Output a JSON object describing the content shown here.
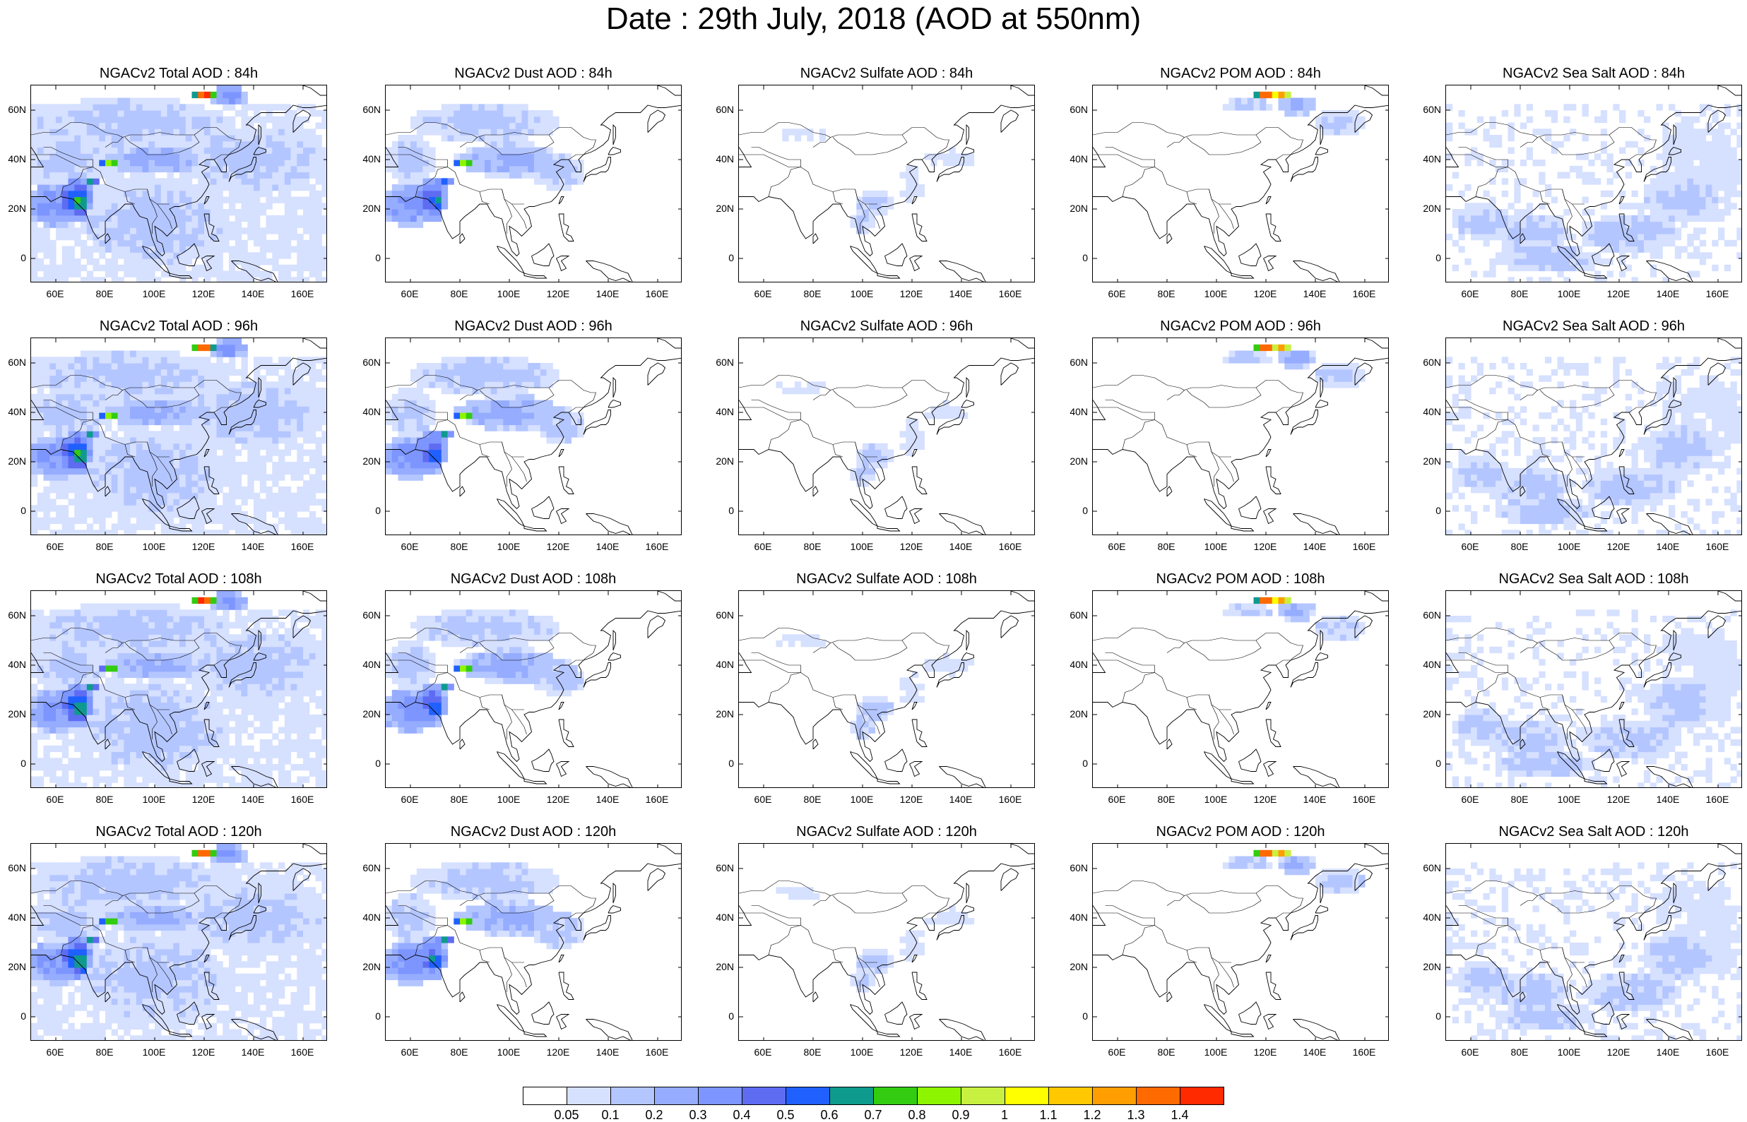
{
  "title": "Date : 29th July, 2018 (AOD at 550nm)",
  "axes": {
    "lat_labels": [
      "60N",
      "40N",
      "20N",
      "0"
    ],
    "lon_labels": [
      "60E",
      "80E",
      "100E",
      "120E",
      "140E",
      "160E"
    ]
  },
  "panels": [
    {
      "title": "NGACv2 Total AOD : 84h",
      "field": "total",
      "hour": "84h"
    },
    {
      "title": "NGACv2 Dust AOD : 84h",
      "field": "dust",
      "hour": "84h"
    },
    {
      "title": "NGACv2 Sulfate AOD : 84h",
      "field": "sulfate",
      "hour": "84h"
    },
    {
      "title": "NGACv2 POM AOD : 84h",
      "field": "pom",
      "hour": "84h"
    },
    {
      "title": "NGACv2 Sea Salt AOD : 84h",
      "field": "seasalt",
      "hour": "84h"
    },
    {
      "title": "NGACv2 Total AOD : 96h",
      "field": "total",
      "hour": "96h"
    },
    {
      "title": "NGACv2 Dust AOD : 96h",
      "field": "dust",
      "hour": "96h"
    },
    {
      "title": "NGACv2 Sulfate AOD : 96h",
      "field": "sulfate",
      "hour": "96h"
    },
    {
      "title": "NGACv2 POM AOD : 96h",
      "field": "pom",
      "hour": "96h"
    },
    {
      "title": "NGACv2 Sea Salt AOD : 96h",
      "field": "seasalt",
      "hour": "96h"
    },
    {
      "title": "NGACv2 Total AOD : 108h",
      "field": "total",
      "hour": "108h"
    },
    {
      "title": "NGACv2 Dust AOD : 108h",
      "field": "dust",
      "hour": "108h"
    },
    {
      "title": "NGACv2 Sulfate AOD : 108h",
      "field": "sulfate",
      "hour": "108h"
    },
    {
      "title": "NGACv2 POM AOD : 108h",
      "field": "pom",
      "hour": "108h"
    },
    {
      "title": "NGACv2 Sea Salt AOD : 108h",
      "field": "seasalt",
      "hour": "108h"
    },
    {
      "title": "NGACv2 Total AOD : 120h",
      "field": "total",
      "hour": "120h"
    },
    {
      "title": "NGACv2 Dust AOD : 120h",
      "field": "dust",
      "hour": "120h"
    },
    {
      "title": "NGACv2 Sulfate AOD : 120h",
      "field": "sulfate",
      "hour": "120h"
    },
    {
      "title": "NGACv2 POM AOD : 120h",
      "field": "pom",
      "hour": "120h"
    },
    {
      "title": "NGACv2 Sea Salt  AOD : 120h",
      "field": "seasalt",
      "hour": "120h"
    }
  ],
  "colorbar": {
    "labels": [
      "0.05",
      "0.1",
      "0.2",
      "0.3",
      "0.4",
      "0.5",
      "0.6",
      "0.7",
      "0.8",
      "0.9",
      "1",
      "1.1",
      "1.2",
      "1.3",
      "1.4"
    ],
    "colors": [
      "#ffffff",
      "#d6e0ff",
      "#b4c6ff",
      "#95acff",
      "#7d95ff",
      "#5e6cf2",
      "#1f60ff",
      "#0f9a8e",
      "#33cc11",
      "#8ef500",
      "#c8f040",
      "#ffff00",
      "#ffc800",
      "#ff9e00",
      "#ff6a00",
      "#ff2a00"
    ]
  }
}
